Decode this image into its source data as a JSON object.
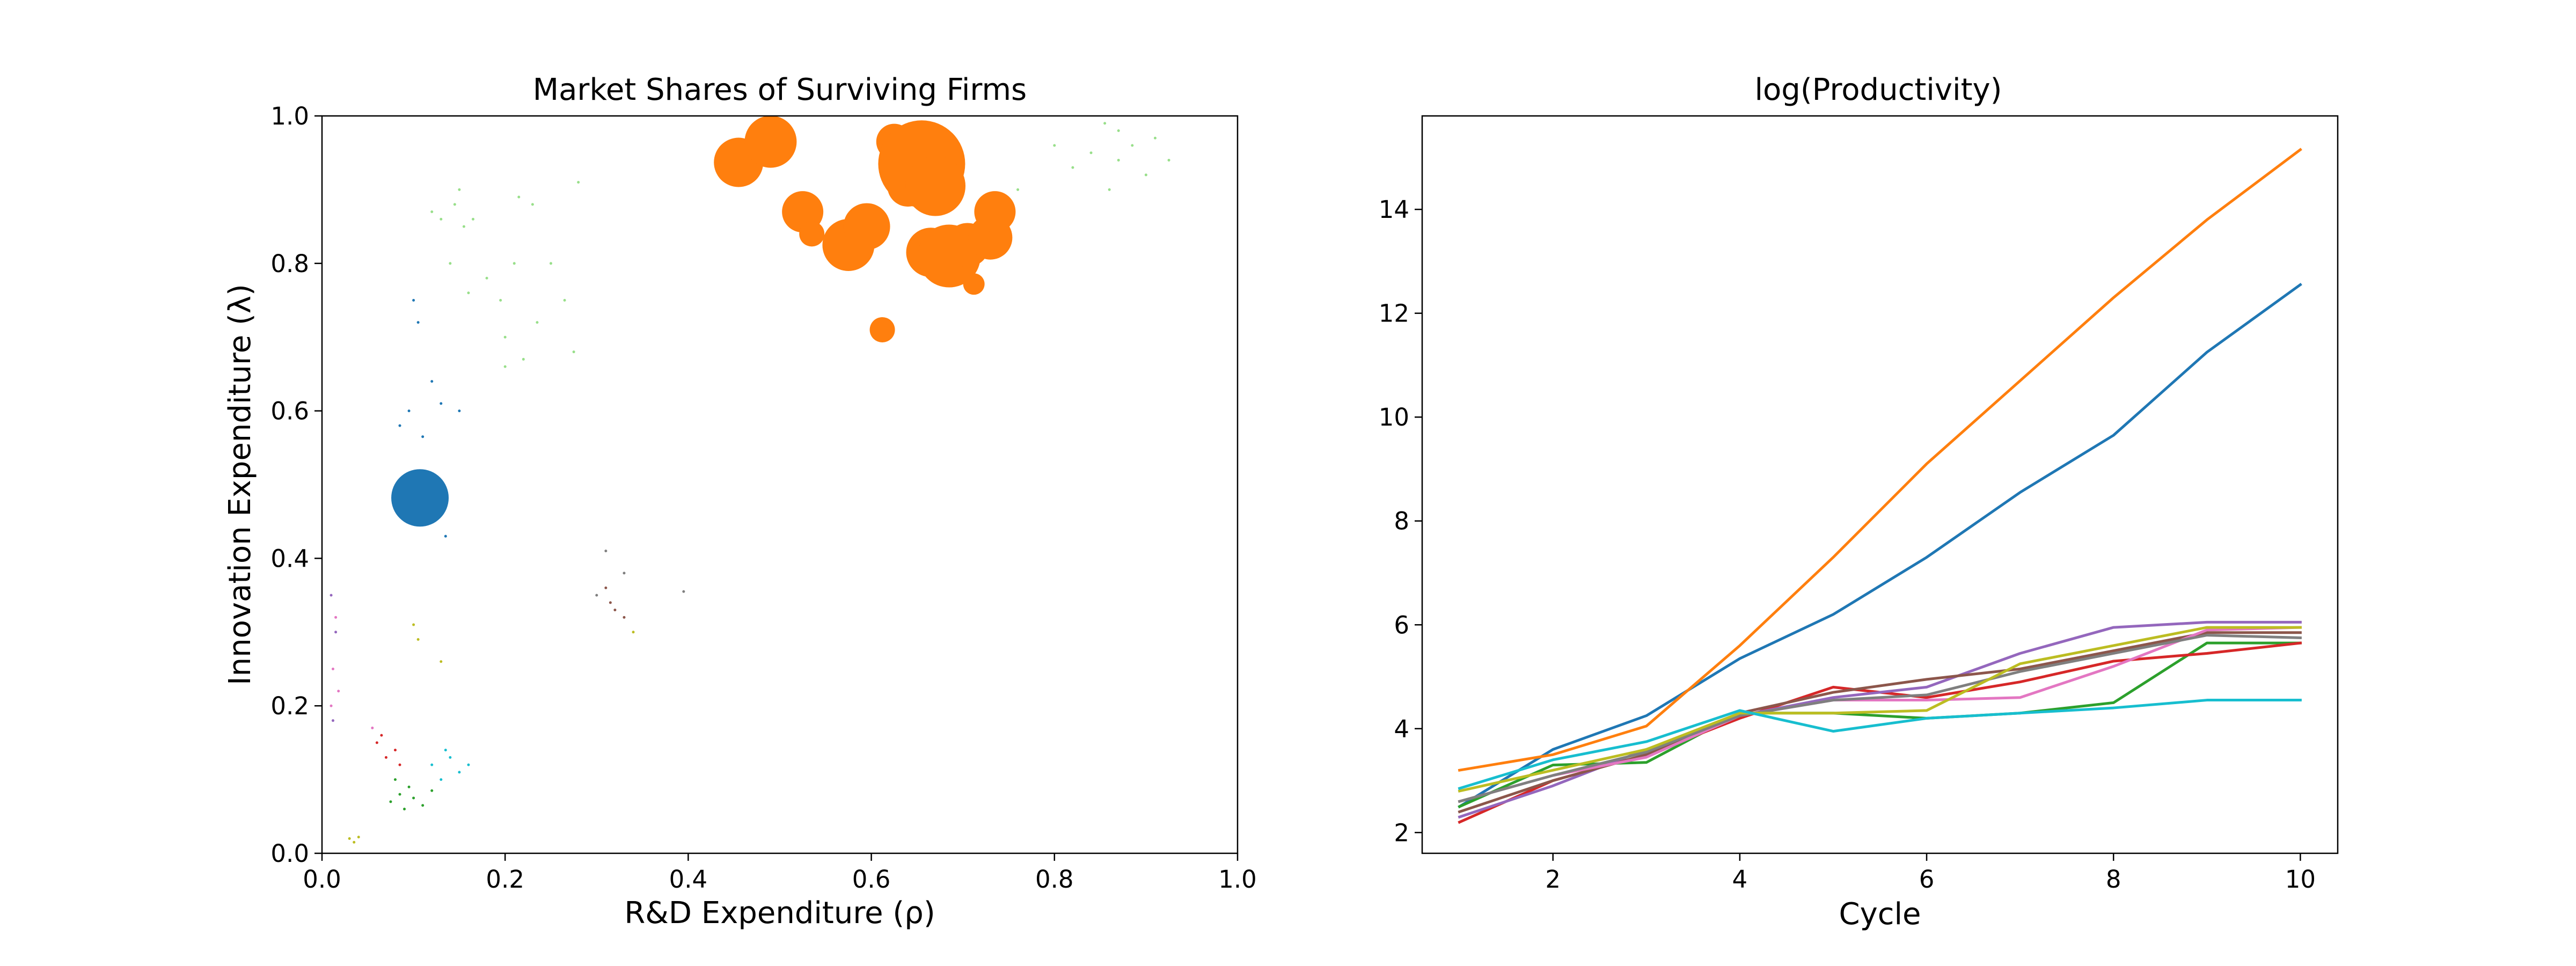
{
  "chart_data": [
    {
      "type": "scatter",
      "title": "Market Shares of Surviving Firms",
      "xlabel": "R&D Expenditure (ρ)",
      "ylabel": "Innovation Expenditure (λ)",
      "xlim": [
        0.0,
        1.0
      ],
      "ylim": [
        0.0,
        1.0
      ],
      "xticks": [
        "0.0",
        "0.2",
        "0.4",
        "0.6",
        "0.8",
        "1.0"
      ],
      "yticks": [
        "0.0",
        "0.2",
        "0.4",
        "0.6",
        "0.8",
        "1.0"
      ],
      "grid": false,
      "legend": "none",
      "size_encodes": "market share",
      "series": [
        {
          "color": "#ff7f0e",
          "points": [
            {
              "x": 0.455,
              "y": 0.937,
              "size": 0.6
            },
            {
              "x": 0.49,
              "y": 0.965,
              "size": 0.65
            },
            {
              "x": 0.525,
              "y": 0.87,
              "size": 0.45
            },
            {
              "x": 0.535,
              "y": 0.84,
              "size": 0.15
            },
            {
              "x": 0.575,
              "y": 0.825,
              "size": 0.65
            },
            {
              "x": 0.595,
              "y": 0.85,
              "size": 0.55
            },
            {
              "x": 0.625,
              "y": 0.965,
              "size": 0.35
            },
            {
              "x": 0.64,
              "y": 0.905,
              "size": 0.45
            },
            {
              "x": 0.655,
              "y": 0.935,
              "size": 1.3
            },
            {
              "x": 0.67,
              "y": 0.905,
              "size": 0.8
            },
            {
              "x": 0.665,
              "y": 0.815,
              "size": 0.6
            },
            {
              "x": 0.685,
              "y": 0.81,
              "size": 0.85
            },
            {
              "x": 0.705,
              "y": 0.825,
              "size": 0.5
            },
            {
              "x": 0.73,
              "y": 0.835,
              "size": 0.5
            },
            {
              "x": 0.735,
              "y": 0.87,
              "size": 0.45
            },
            {
              "x": 0.612,
              "y": 0.71,
              "size": 0.15
            },
            {
              "x": 0.712,
              "y": 0.772,
              "size": 0.08
            }
          ]
        },
        {
          "color": "#1f77b4",
          "points": [
            {
              "x": 0.107,
              "y": 0.482,
              "size": 0.75
            },
            {
              "x": 0.1,
              "y": 0.75,
              "size": 0.01
            },
            {
              "x": 0.105,
              "y": 0.72,
              "size": 0.01
            },
            {
              "x": 0.11,
              "y": 0.565,
              "size": 0.01
            },
            {
              "x": 0.12,
              "y": 0.64,
              "size": 0.01
            },
            {
              "x": 0.13,
              "y": 0.61,
              "size": 0.01
            },
            {
              "x": 0.085,
              "y": 0.58,
              "size": 0.01
            },
            {
              "x": 0.095,
              "y": 0.6,
              "size": 0.01
            },
            {
              "x": 0.135,
              "y": 0.43,
              "size": 0.01
            },
            {
              "x": 0.15,
              "y": 0.6,
              "size": 0.01
            }
          ]
        },
        {
          "color": "#2ca02c",
          "points": [
            {
              "x": 0.075,
              "y": 0.07,
              "size": 0.01
            },
            {
              "x": 0.085,
              "y": 0.08,
              "size": 0.01
            },
            {
              "x": 0.09,
              "y": 0.06,
              "size": 0.01
            },
            {
              "x": 0.095,
              "y": 0.09,
              "size": 0.01
            },
            {
              "x": 0.1,
              "y": 0.075,
              "size": 0.01
            },
            {
              "x": 0.11,
              "y": 0.065,
              "size": 0.01
            },
            {
              "x": 0.12,
              "y": 0.085,
              "size": 0.01
            },
            {
              "x": 0.08,
              "y": 0.1,
              "size": 0.01
            }
          ]
        },
        {
          "color": "#d62728",
          "points": [
            {
              "x": 0.06,
              "y": 0.15,
              "size": 0.01
            },
            {
              "x": 0.07,
              "y": 0.13,
              "size": 0.01
            },
            {
              "x": 0.08,
              "y": 0.14,
              "size": 0.01
            },
            {
              "x": 0.085,
              "y": 0.12,
              "size": 0.01
            },
            {
              "x": 0.065,
              "y": 0.16,
              "size": 0.01
            }
          ]
        },
        {
          "color": "#17becf",
          "points": [
            {
              "x": 0.12,
              "y": 0.12,
              "size": 0.01
            },
            {
              "x": 0.13,
              "y": 0.1,
              "size": 0.01
            },
            {
              "x": 0.14,
              "y": 0.13,
              "size": 0.01
            },
            {
              "x": 0.15,
              "y": 0.11,
              "size": 0.01
            },
            {
              "x": 0.16,
              "y": 0.12,
              "size": 0.01
            },
            {
              "x": 0.135,
              "y": 0.14,
              "size": 0.01
            }
          ]
        },
        {
          "color": "#bcbd22",
          "points": [
            {
              "x": 0.03,
              "y": 0.02,
              "size": 0.01
            },
            {
              "x": 0.035,
              "y": 0.015,
              "size": 0.01
            },
            {
              "x": 0.04,
              "y": 0.022,
              "size": 0.01
            },
            {
              "x": 0.1,
              "y": 0.31,
              "size": 0.01
            },
            {
              "x": 0.105,
              "y": 0.29,
              "size": 0.01
            },
            {
              "x": 0.13,
              "y": 0.26,
              "size": 0.01
            },
            {
              "x": 0.34,
              "y": 0.3,
              "size": 0.01
            }
          ]
        },
        {
          "color": "#e377c2",
          "points": [
            {
              "x": 0.015,
              "y": 0.32,
              "size": 0.01
            },
            {
              "x": 0.012,
              "y": 0.25,
              "size": 0.01
            },
            {
              "x": 0.018,
              "y": 0.22,
              "size": 0.01
            },
            {
              "x": 0.01,
              "y": 0.2,
              "size": 0.01
            },
            {
              "x": 0.055,
              "y": 0.17,
              "size": 0.01
            }
          ]
        },
        {
          "color": "#9467bd",
          "points": [
            {
              "x": 0.01,
              "y": 0.35,
              "size": 0.01
            },
            {
              "x": 0.015,
              "y": 0.3,
              "size": 0.01
            },
            {
              "x": 0.012,
              "y": 0.18,
              "size": 0.01
            }
          ]
        },
        {
          "color": "#8c564b",
          "points": [
            {
              "x": 0.31,
              "y": 0.36,
              "size": 0.01
            },
            {
              "x": 0.315,
              "y": 0.34,
              "size": 0.01
            },
            {
              "x": 0.32,
              "y": 0.33,
              "size": 0.01
            },
            {
              "x": 0.33,
              "y": 0.32,
              "size": 0.01
            }
          ]
        },
        {
          "color": "#7f7f7f",
          "points": [
            {
              "x": 0.31,
              "y": 0.41,
              "size": 0.01
            },
            {
              "x": 0.33,
              "y": 0.38,
              "size": 0.01
            },
            {
              "x": 0.395,
              "y": 0.355,
              "size": 0.01
            },
            {
              "x": 0.3,
              "y": 0.35,
              "size": 0.01
            }
          ]
        },
        {
          "color": "#98df8a",
          "points": [
            {
              "x": 0.12,
              "y": 0.87,
              "size": 0.01
            },
            {
              "x": 0.13,
              "y": 0.86,
              "size": 0.01
            },
            {
              "x": 0.145,
              "y": 0.88,
              "size": 0.01
            },
            {
              "x": 0.15,
              "y": 0.9,
              "size": 0.01
            },
            {
              "x": 0.155,
              "y": 0.85,
              "size": 0.01
            },
            {
              "x": 0.165,
              "y": 0.86,
              "size": 0.01
            },
            {
              "x": 0.14,
              "y": 0.8,
              "size": 0.01
            },
            {
              "x": 0.16,
              "y": 0.76,
              "size": 0.01
            },
            {
              "x": 0.18,
              "y": 0.78,
              "size": 0.01
            },
            {
              "x": 0.195,
              "y": 0.75,
              "size": 0.01
            },
            {
              "x": 0.2,
              "y": 0.7,
              "size": 0.01
            },
            {
              "x": 0.21,
              "y": 0.8,
              "size": 0.01
            },
            {
              "x": 0.215,
              "y": 0.89,
              "size": 0.01
            },
            {
              "x": 0.23,
              "y": 0.88,
              "size": 0.01
            },
            {
              "x": 0.235,
              "y": 0.72,
              "size": 0.01
            },
            {
              "x": 0.25,
              "y": 0.8,
              "size": 0.01
            },
            {
              "x": 0.265,
              "y": 0.75,
              "size": 0.01
            },
            {
              "x": 0.275,
              "y": 0.68,
              "size": 0.01
            },
            {
              "x": 0.28,
              "y": 0.91,
              "size": 0.01
            },
            {
              "x": 0.2,
              "y": 0.66,
              "size": 0.01
            },
            {
              "x": 0.22,
              "y": 0.67,
              "size": 0.01
            },
            {
              "x": 0.76,
              "y": 0.9,
              "size": 0.01
            },
            {
              "x": 0.8,
              "y": 0.96,
              "size": 0.01
            },
            {
              "x": 0.82,
              "y": 0.93,
              "size": 0.01
            },
            {
              "x": 0.84,
              "y": 0.95,
              "size": 0.01
            },
            {
              "x": 0.855,
              "y": 0.99,
              "size": 0.01
            },
            {
              "x": 0.86,
              "y": 0.9,
              "size": 0.01
            },
            {
              "x": 0.87,
              "y": 0.94,
              "size": 0.01
            },
            {
              "x": 0.885,
              "y": 0.96,
              "size": 0.01
            },
            {
              "x": 0.9,
              "y": 0.92,
              "size": 0.01
            },
            {
              "x": 0.91,
              "y": 0.97,
              "size": 0.01
            },
            {
              "x": 0.925,
              "y": 0.94,
              "size": 0.01
            },
            {
              "x": 0.87,
              "y": 0.98,
              "size": 0.01
            }
          ]
        }
      ]
    },
    {
      "type": "line",
      "title": "log(Productivity)",
      "xlabel": "Cycle",
      "ylabel": "",
      "xlim": [
        0.6,
        10.4
      ],
      "ylim": [
        1.6,
        15.8
      ],
      "xticks": [
        2,
        4,
        6,
        8,
        10
      ],
      "yticks": [
        2,
        4,
        6,
        8,
        10,
        12,
        14
      ],
      "grid": false,
      "legend": "none",
      "x": [
        1,
        2,
        3,
        4,
        5,
        6,
        7,
        8,
        9,
        10
      ],
      "series": [
        {
          "color": "#1f77b4",
          "values": [
            2.5,
            3.6,
            4.25,
            5.35,
            6.2,
            7.3,
            8.55,
            9.65,
            11.25,
            12.55
          ]
        },
        {
          "color": "#ff7f0e",
          "values": [
            3.2,
            3.5,
            4.05,
            5.6,
            7.3,
            9.1,
            10.7,
            12.3,
            13.8,
            15.15
          ]
        },
        {
          "color": "#2ca02c",
          "values": [
            2.5,
            3.3,
            3.35,
            4.3,
            4.3,
            4.2,
            4.3,
            4.5,
            5.65,
            5.65
          ]
        },
        {
          "color": "#d62728",
          "values": [
            2.2,
            3.0,
            3.5,
            4.2,
            4.8,
            4.6,
            4.9,
            5.3,
            5.45,
            5.65
          ]
        },
        {
          "color": "#9467bd",
          "values": [
            2.3,
            2.9,
            3.6,
            4.25,
            4.6,
            4.8,
            5.45,
            5.95,
            6.05,
            6.05
          ]
        },
        {
          "color": "#8c564b",
          "values": [
            2.4,
            3.0,
            3.5,
            4.3,
            4.7,
            4.95,
            5.15,
            5.5,
            5.85,
            5.85
          ]
        },
        {
          "color": "#e377c2",
          "values": [
            2.6,
            3.1,
            3.45,
            4.25,
            4.55,
            4.55,
            4.6,
            5.2,
            5.9,
            5.95
          ]
        },
        {
          "color": "#7f7f7f",
          "values": [
            2.6,
            3.1,
            3.55,
            4.25,
            4.55,
            4.65,
            5.1,
            5.45,
            5.8,
            5.75
          ]
        },
        {
          "color": "#bcbd22",
          "values": [
            2.8,
            3.2,
            3.6,
            4.3,
            4.3,
            4.35,
            5.25,
            5.6,
            5.95,
            5.95
          ]
        },
        {
          "color": "#17becf",
          "values": [
            2.85,
            3.4,
            3.75,
            4.35,
            3.95,
            4.2,
            4.3,
            4.4,
            4.55,
            4.55
          ]
        }
      ]
    }
  ]
}
